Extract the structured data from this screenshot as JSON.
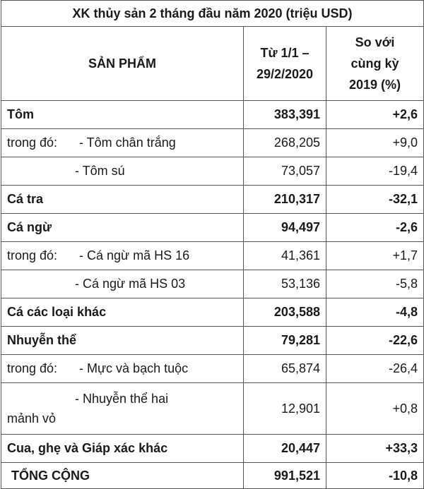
{
  "title": "XK thủy sản 2 tháng đầu năm 2020 (triệu USD)",
  "headers": {
    "product": "SẢN PHẨM",
    "period_line1": "Từ 1/1 –",
    "period_line2": "29/2/2020",
    "compare_line1": "So với",
    "compare_line2": "cùng kỳ",
    "compare_line3": "2019 (%)"
  },
  "rows": [
    {
      "prefix": "",
      "name": "Tôm",
      "value": "383,391",
      "change": "+2,6",
      "bold": true
    },
    {
      "prefix": "trong đó:",
      "name": "- Tôm chân trắng",
      "value": "268,205",
      "change": "+9,0",
      "bold": false
    },
    {
      "prefix": "",
      "name": "- Tôm sú",
      "value": "73,057",
      "change": "-19,4",
      "bold": false
    },
    {
      "prefix": "",
      "name": "Cá tra",
      "value": "210,317",
      "change": "-32,1",
      "bold": true
    },
    {
      "prefix": "",
      "name": "Cá ngừ",
      "value": "94,497",
      "change": "-2,6",
      "bold": true
    },
    {
      "prefix": "trong đó:",
      "name": "- Cá ngừ mã HS 16",
      "value": "41,361",
      "change": "+1,7",
      "bold": false
    },
    {
      "prefix": "",
      "name": "- Cá ngừ mã HS 03",
      "value": "53,136",
      "change": "-5,8",
      "bold": false
    },
    {
      "prefix": "",
      "name": "Cá các loại khác",
      "value": "203,588",
      "change": "-4,8",
      "bold": true
    },
    {
      "prefix": "",
      "name": "Nhuyễn thể",
      "value": "79,281",
      "change": "-22,6",
      "bold": true
    },
    {
      "prefix": "trong đó:",
      "name": "- Mực và bạch tuộc",
      "value": "65,874",
      "change": "-26,4",
      "bold": false
    },
    {
      "prefix": "",
      "name_line1": "- Nhuyễn thể hai",
      "name_line2": "mảnh vỏ",
      "value": "12,901",
      "change": "+0,8",
      "bold": false
    },
    {
      "prefix": "",
      "name": "Cua, ghẹ và Giáp xác khác",
      "value": "20,447",
      "change": "+33,3",
      "bold": true
    },
    {
      "prefix": "",
      "name": "TỔNG CỘNG",
      "value": "991,521",
      "change": "-10,8",
      "bold": true
    }
  ]
}
